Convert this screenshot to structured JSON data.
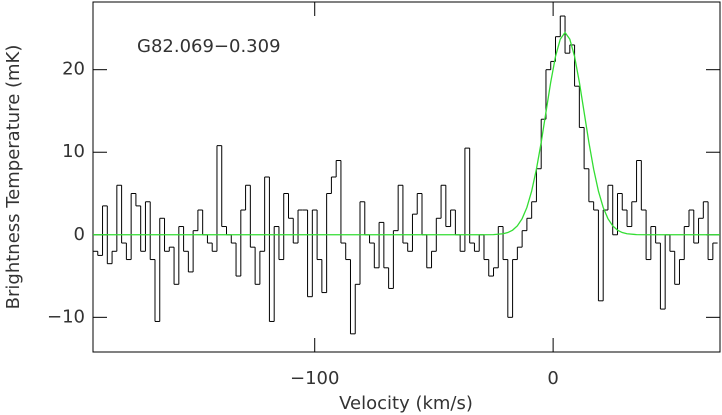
{
  "chart_data": {
    "type": "step",
    "annotation": "G82.069−0.309",
    "xlabel": "Velocity (km/s)",
    "ylabel": "Brightness Temperature (mK)",
    "xlim": [
      -193,
      70
    ],
    "ylim": [
      -14.2,
      28.2
    ],
    "xticks": [
      {
        "value": -100,
        "label": "−100"
      },
      0
    ],
    "yticks": [
      {
        "value": -10,
        "label": "−10"
      },
      0,
      10,
      20
    ],
    "series": [
      {
        "color": "#000000",
        "x": [
          -192,
          -190,
          -188,
          -186,
          -184,
          -182,
          -180,
          -178,
          -176,
          -174,
          -172,
          -170,
          -168,
          -166,
          -164,
          -162,
          -160,
          -158,
          -156,
          -154,
          -152,
          -150,
          -148,
          -146,
          -144,
          -142,
          -140,
          -138,
          -136,
          -134,
          -132,
          -130,
          -128,
          -126,
          -124,
          -122,
          -120,
          -118,
          -116,
          -114,
          -112,
          -110,
          -108,
          -106,
          -104,
          -102,
          -100,
          -98,
          -96,
          -94,
          -92,
          -90,
          -88,
          -86,
          -84,
          -82,
          -80,
          -78,
          -76,
          -74,
          -72,
          -70,
          -68,
          -66,
          -64,
          -62,
          -60,
          -58,
          -56,
          -54,
          -52,
          -50,
          -48,
          -46,
          -44,
          -42,
          -40,
          -38,
          -36,
          -34,
          -32,
          -30,
          -28,
          -26,
          -24,
          -22,
          -20,
          -18,
          -16,
          -14,
          -12,
          -10,
          -8,
          -6,
          -4,
          -2,
          0,
          2,
          4,
          6,
          8,
          10,
          12,
          14,
          16,
          18,
          20,
          22,
          24,
          26,
          28,
          30,
          32,
          34,
          36,
          38,
          40,
          42,
          44,
          46,
          48,
          50,
          52,
          54,
          56,
          58,
          60,
          62,
          64,
          66,
          68
        ],
        "values": [
          -2,
          -2.5,
          3.5,
          -3.5,
          -2,
          6,
          -1,
          -3,
          5,
          3.5,
          -2,
          4,
          -3,
          -10.5,
          2,
          -2,
          -1.5,
          -6,
          1,
          -2,
          -4.5,
          0.5,
          3,
          0,
          -1,
          -2,
          10.8,
          1,
          0,
          -1,
          -5,
          3,
          6,
          -1.5,
          -6,
          -2,
          7,
          -10.5,
          1,
          -3,
          5,
          2,
          -1,
          3,
          3,
          -7.5,
          3,
          -3,
          -7,
          5,
          7,
          9,
          -1,
          -3,
          -12,
          -6,
          4,
          0,
          -1,
          -4,
          1.5,
          -4,
          -6.5,
          0.5,
          6,
          -1,
          -2,
          2.5,
          5,
          0,
          -4,
          -2,
          2,
          6,
          1,
          3,
          0,
          -2,
          10.5,
          -1,
          -2,
          0,
          -3,
          -5,
          -4,
          1,
          -3,
          -10,
          -3,
          -1.5,
          0.5,
          2,
          4,
          8,
          14,
          20,
          21,
          24,
          26.5,
          22,
          23,
          18,
          13,
          8,
          4,
          3,
          -8,
          3,
          6,
          0,
          5,
          3,
          1,
          4,
          9,
          3,
          -3,
          1,
          -1,
          -9,
          0,
          -2,
          -6,
          -3,
          1,
          3,
          -1,
          2,
          4,
          -3,
          -1
        ]
      },
      {
        "type": "line",
        "color": "#33dd33",
        "x": [
          -193,
          -30,
          -25,
          -21,
          -19,
          -17,
          -15,
          -13,
          -11,
          -9,
          -7,
          -5,
          -3,
          -1,
          1,
          3,
          5,
          7,
          9,
          11,
          13,
          15,
          17,
          19,
          21,
          23,
          25,
          27,
          29,
          31,
          35,
          40,
          70
        ],
        "values": [
          0,
          0,
          0.02,
          0.12,
          0.27,
          0.56,
          1.08,
          1.95,
          3.31,
          5.3,
          7.96,
          11.2,
          14.86,
          18.5,
          21.6,
          23.7,
          24.5,
          23.7,
          21.6,
          18.5,
          14.86,
          11.2,
          7.96,
          5.3,
          3.31,
          1.95,
          1.08,
          0.56,
          0.27,
          0.12,
          0.02,
          0,
          0
        ]
      }
    ]
  }
}
